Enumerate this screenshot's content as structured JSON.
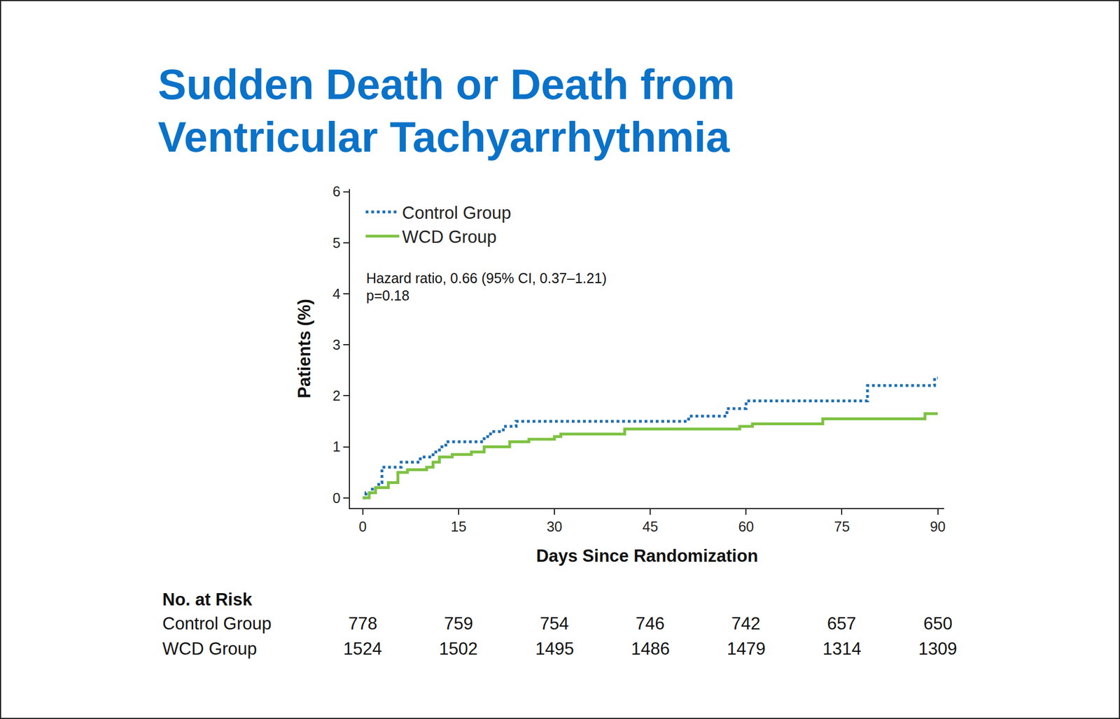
{
  "chart_data": {
    "type": "step",
    "title": [
      "Sudden Death or Death from",
      "Ventricular Tachyarrhythmia"
    ],
    "xlabel": "Days Since Randomization",
    "ylabel": "Patients (%)",
    "xlim": [
      -2,
      91
    ],
    "ylim": [
      -0.2,
      6.05
    ],
    "xticks": [
      0,
      15,
      30,
      45,
      60,
      75,
      90
    ],
    "yticks": [
      0,
      1,
      2,
      3,
      4,
      5,
      6
    ],
    "grid": false,
    "legend": "upper left",
    "annotations": [
      "Hazard ratio, 0.66 (95% CI, 0.37–1.21)",
      "p=0.18"
    ],
    "series": [
      {
        "name": "Control Group",
        "color": "#1f6fb4",
        "line_style": "dotted",
        "x": [
          0,
          0.5,
          1.5,
          2.5,
          3,
          6,
          9,
          11,
          12,
          13,
          19,
          20,
          22,
          24,
          51,
          57,
          60,
          79,
          89.5,
          90
        ],
        "values": [
          0,
          0.1,
          0.2,
          0.3,
          0.6,
          0.7,
          0.8,
          0.9,
          1.0,
          1.1,
          1.2,
          1.3,
          1.4,
          1.5,
          1.6,
          1.75,
          1.9,
          2.2,
          2.35,
          2.35
        ]
      },
      {
        "name": "WCD Group",
        "color": "#7dc242",
        "line_style": "solid",
        "x": [
          0,
          1,
          2,
          4,
          5.5,
          7,
          10,
          11,
          12,
          14,
          17,
          19,
          23,
          26,
          30,
          31,
          41,
          59,
          61,
          72,
          88,
          90
        ],
        "values": [
          0,
          0.1,
          0.2,
          0.3,
          0.5,
          0.55,
          0.6,
          0.7,
          0.8,
          0.85,
          0.9,
          1.0,
          1.1,
          1.15,
          1.2,
          1.25,
          1.35,
          1.4,
          1.45,
          1.55,
          1.65,
          1.65
        ]
      }
    ],
    "at_risk": {
      "title": "No. at Risk",
      "rows": [
        {
          "name": "Control Group",
          "values": [
            778,
            759,
            754,
            746,
            742,
            657,
            650
          ]
        },
        {
          "name": "WCD Group",
          "values": [
            1524,
            1502,
            1495,
            1486,
            1479,
            1314,
            1309
          ]
        }
      ]
    }
  }
}
